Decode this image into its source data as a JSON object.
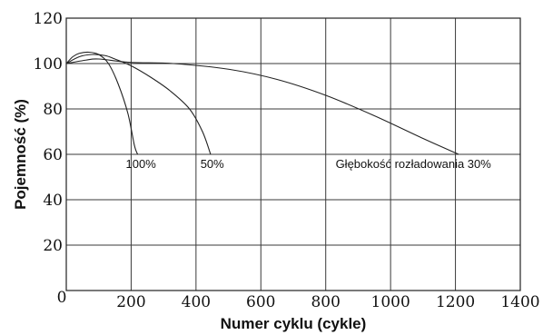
{
  "chart_data": {
    "type": "line",
    "xlabel": "Numer cyklu (cykle)",
    "ylabel": "Pojemność (%)",
    "xlim": [
      0,
      1400
    ],
    "ylim": [
      0,
      120
    ],
    "xticks": [
      0,
      200,
      400,
      600,
      800,
      1000,
      1200,
      1400
    ],
    "yticks": [
      20,
      40,
      60,
      80,
      100,
      120
    ],
    "origin_label": "0",
    "grid": true,
    "series": [
      {
        "name": "100%",
        "x": [
          0,
          20,
          40,
          70,
          100,
          130,
          160,
          190,
          210,
          220
        ],
        "y": [
          100,
          103,
          104.5,
          105,
          104,
          100,
          91,
          78,
          64,
          60
        ]
      },
      {
        "name": "50%",
        "x": [
          0,
          40,
          80,
          120,
          150,
          200,
          260,
          320,
          380,
          420,
          445
        ],
        "y": [
          100,
          103,
          104,
          103.5,
          102,
          99,
          94,
          88,
          80,
          70,
          60
        ]
      },
      {
        "name": "Głębokość rozładowania 30%",
        "x": [
          0,
          60,
          100,
          200,
          330,
          500,
          650,
          800,
          950,
          1100,
          1210
        ],
        "y": [
          100,
          101.5,
          102,
          100.5,
          100,
          97.5,
          93,
          86,
          77,
          67,
          60
        ]
      }
    ],
    "annotations": [
      {
        "text": "100%",
        "x": 230,
        "y": 56
      },
      {
        "text": "50%",
        "x": 450,
        "y": 56
      },
      {
        "text": "Głębokość rozładowania 30%",
        "x": 1310,
        "y": 56
      }
    ]
  }
}
